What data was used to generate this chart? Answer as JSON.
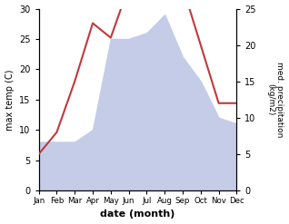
{
  "months": [
    "Jan",
    "Feb",
    "Mar",
    "Apr",
    "May",
    "Jun",
    "Jul",
    "Aug",
    "Sep",
    "Oct",
    "Nov",
    "Dec"
  ],
  "x": [
    1,
    2,
    3,
    4,
    5,
    6,
    7,
    8,
    9,
    10,
    11,
    12
  ],
  "temperature": [
    8,
    8,
    8,
    10,
    25,
    25,
    26,
    29,
    22,
    18,
    12,
    11
  ],
  "precipitation": [
    5,
    8,
    15,
    23,
    21,
    28,
    26,
    28,
    28,
    20,
    12,
    12
  ],
  "temp_fill_color": "#c5cce8",
  "precip_color": "#c0393b",
  "ylabel_left": "max temp (C)",
  "ylabel_right": "med. precipitation\n(kg/m2)",
  "xlabel": "date (month)",
  "ylim_left": [
    0,
    30
  ],
  "ylim_right": [
    0,
    25
  ],
  "yticks_left": [
    0,
    5,
    10,
    15,
    20,
    25,
    30
  ],
  "yticks_right": [
    0,
    5,
    10,
    15,
    20,
    25
  ],
  "background_color": "#ffffff"
}
